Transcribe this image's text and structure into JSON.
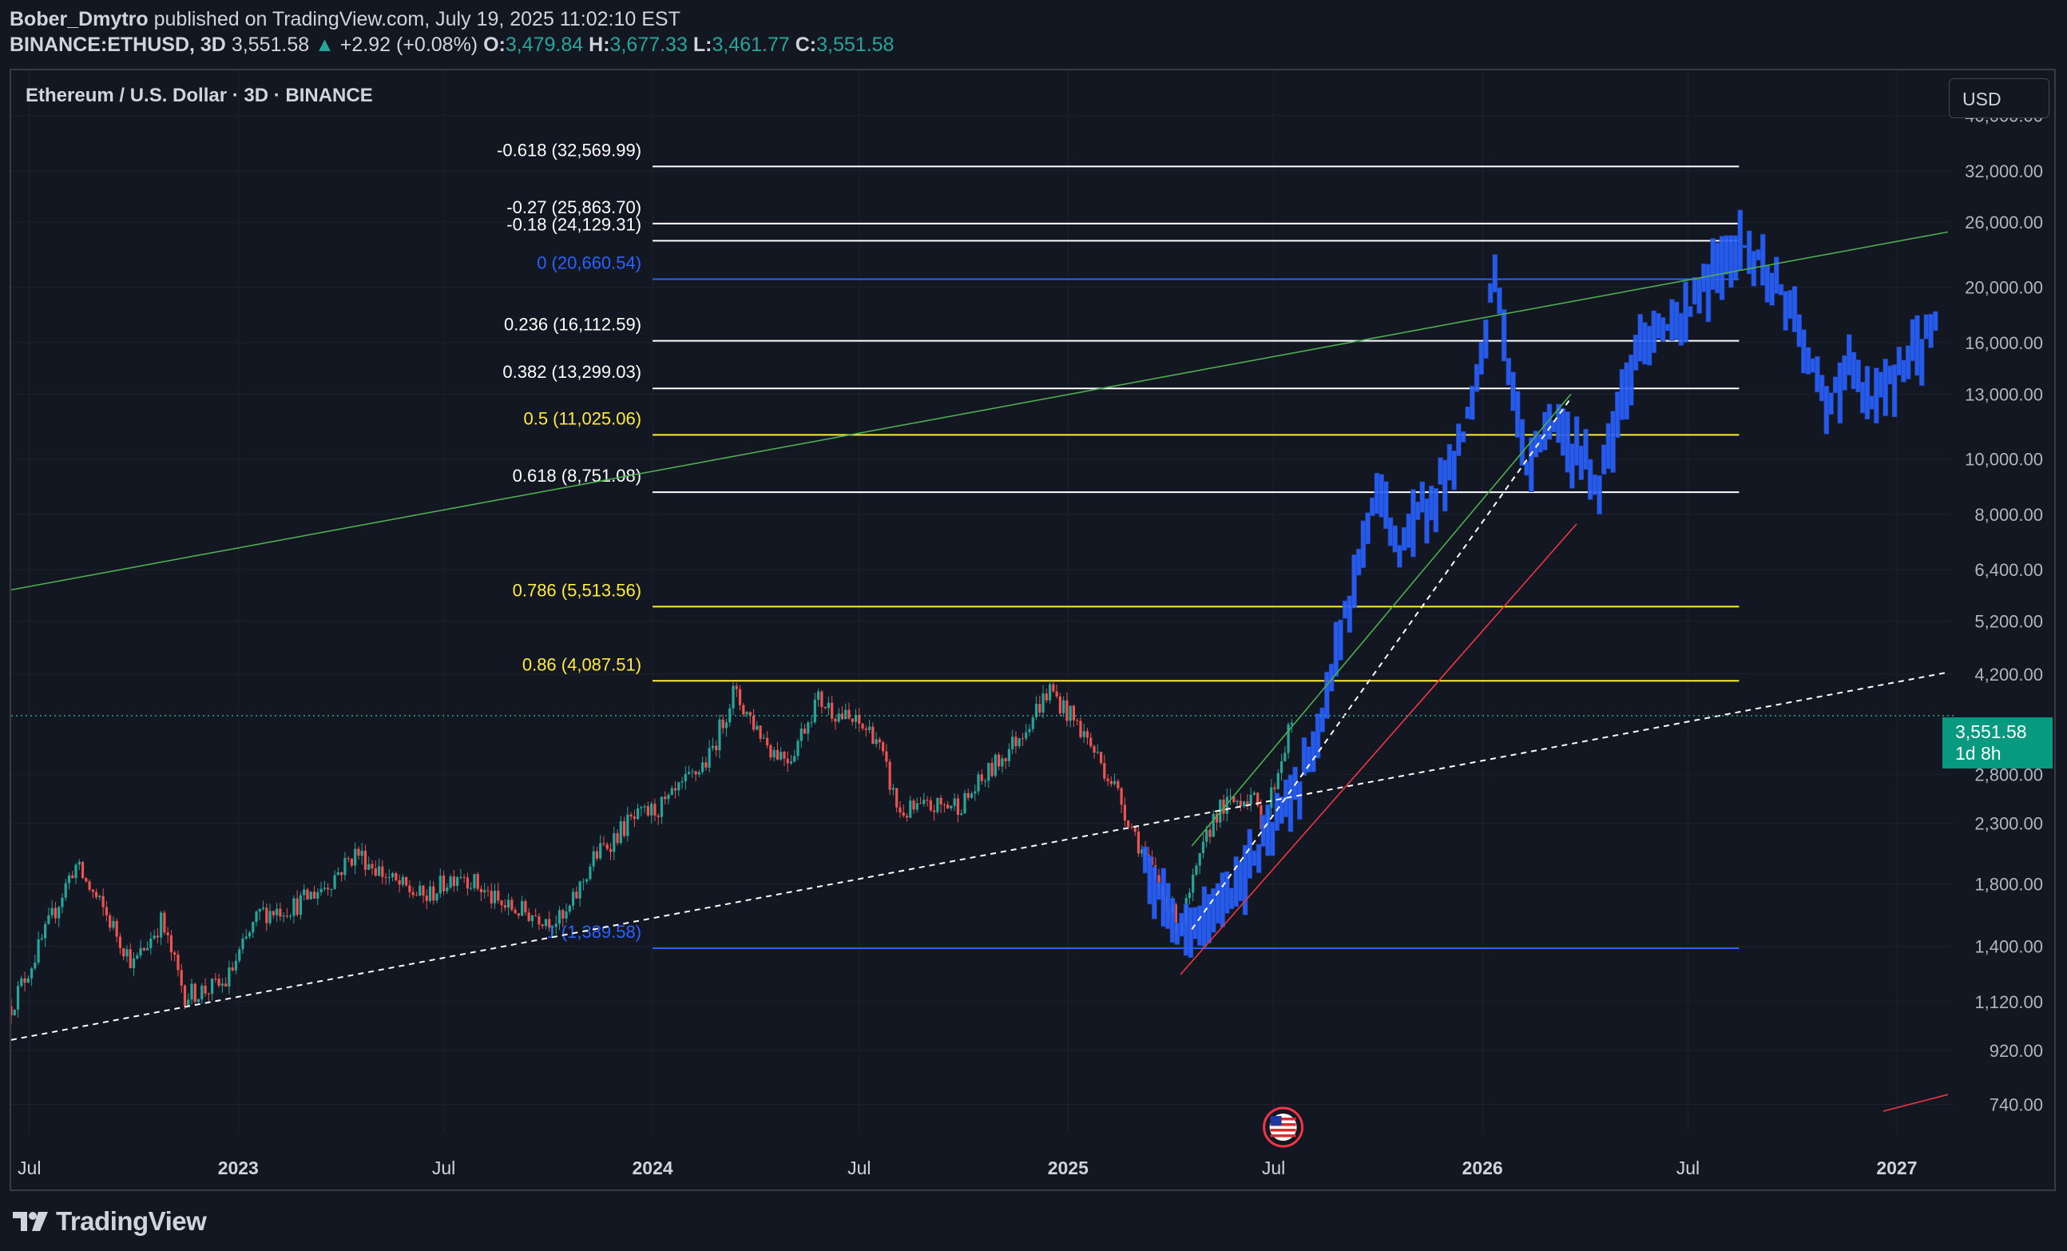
{
  "header": {
    "author": "Bober_Dmytro",
    "published_text": "published on TradingView.com, July 19, 2025 11:02:10 EST",
    "symbol": "BINANCE:ETHUSD, 3D",
    "last_price": "3,551.58",
    "change_arrow": "▲",
    "change": "+2.92 (+0.08%)",
    "o_label": "O:",
    "o_value": "3,479.84",
    "h_label": "H:",
    "h_value": "3,677.33",
    "l_label": "L:",
    "l_value": "3,461.77",
    "c_label": "C:",
    "c_value": "3,551.58"
  },
  "chart_title": "Ethereum / U.S. Dollar · 3D · BINANCE",
  "currency": "USD",
  "price_badge": {
    "price": "3,551.58",
    "countdown": "1d 8h"
  },
  "brand": "TradingView",
  "colors": {
    "background": "#131722",
    "grid": "#1e222d",
    "up": "#26a69a",
    "down": "#ef5350",
    "projection": "#2962ff",
    "fib_white": "#ffffff",
    "fib_yellow": "#ffeb3b",
    "fib_blue": "#2962ff",
    "trend_green": "#4caf50",
    "trend_red": "#f23645"
  },
  "chart_data": {
    "type": "candlestick",
    "title": "Ethereum / U.S. Dollar · 3D · BINANCE",
    "scale": "log",
    "y_range": [
      660,
      48000
    ],
    "x_range": [
      "2022-06-15",
      "2027-02-20"
    ],
    "y_tick_labels": [
      "40,000.00",
      "32,000.00",
      "26,000.00",
      "20,000.00",
      "16,000.00",
      "13,000.00",
      "10,000.00",
      "8,000.00",
      "6,400.00",
      "5,200.00",
      "4,200.00",
      "2,800.00",
      "2,300.00",
      "1,800.00",
      "1,400.00",
      "1,120.00",
      "920.00",
      "740.00"
    ],
    "y_ticks": [
      40000,
      32000,
      26000,
      20000,
      16000,
      13000,
      10000,
      8000,
      6400,
      5200,
      4200,
      2800,
      2300,
      1800,
      1400,
      1120,
      920,
      740
    ],
    "x_ticks": [
      {
        "label": "Jul",
        "date": "2022-07-01",
        "major": false
      },
      {
        "label": "2023",
        "date": "2023-01-01",
        "major": true
      },
      {
        "label": "Jul",
        "date": "2023-07-01",
        "major": false
      },
      {
        "label": "2024",
        "date": "2024-01-01",
        "major": true
      },
      {
        "label": "Jul",
        "date": "2024-07-01",
        "major": false
      },
      {
        "label": "2025",
        "date": "2025-01-01",
        "major": true
      },
      {
        "label": "Jul",
        "date": "2025-07-01",
        "major": false
      },
      {
        "label": "2026",
        "date": "2026-01-01",
        "major": true
      },
      {
        "label": "Jul",
        "date": "2026-07-01",
        "major": false
      },
      {
        "label": "2027",
        "date": "2027-01-01",
        "major": true
      }
    ],
    "current_price": 3551.58,
    "fib_levels": [
      {
        "label": "-0.618 (32,569.99)",
        "value": 32569.99,
        "color": "white"
      },
      {
        "label": "-0.27 (25,863.70)",
        "value": 25863.7,
        "color": "white"
      },
      {
        "label": "-0.18 (24,129.31)",
        "value": 24129.31,
        "color": "white"
      },
      {
        "label": "0 (20,660.54)",
        "value": 20660.54,
        "color": "blue"
      },
      {
        "label": "0.236 (16,112.59)",
        "value": 16112.59,
        "color": "white"
      },
      {
        "label": "0.382 (13,299.03)",
        "value": 13299.03,
        "color": "white"
      },
      {
        "label": "0.5 (11,025.06)",
        "value": 11025.06,
        "color": "yellow"
      },
      {
        "label": "0.618 (8,751.08)",
        "value": 8751.08,
        "color": "white"
      },
      {
        "label": "0.786 (5,513.56)",
        "value": 5513.56,
        "color": "yellow"
      },
      {
        "label": "0.86 (4,087.51)",
        "value": 4087.51,
        "color": "yellow"
      },
      {
        "label": "1 (1,389.58)",
        "value": 1389.58,
        "color": "blue"
      }
    ],
    "fib_range": {
      "start": "2024-01-01",
      "end": "2026-08-15"
    },
    "trendlines": [
      {
        "name": "long-term-support",
        "style": "dashed",
        "color": "white",
        "p1": [
          "2022-06-15",
          960
        ],
        "p2": [
          "2027-02-15",
          4230
        ]
      },
      {
        "name": "big-resistance",
        "style": "solid",
        "color": "green",
        "p1": [
          "2022-06-15",
          5900
        ],
        "p2": [
          "2027-02-15",
          25000
        ]
      },
      {
        "name": "rally-channel-top",
        "style": "solid",
        "color": "green",
        "p1": [
          "2025-04-20",
          2100
        ],
        "p2": [
          "2026-03-20",
          13000
        ]
      },
      {
        "name": "rally-channel-mid",
        "style": "dashed",
        "color": "white",
        "p1": [
          "2025-04-20",
          1500
        ],
        "p2": [
          "2026-03-20",
          12800
        ]
      },
      {
        "name": "rally-channel-bottom",
        "style": "solid",
        "color": "red",
        "p1": [
          "2025-04-10",
          1250
        ],
        "p2": [
          "2026-03-25",
          7700
        ]
      },
      {
        "name": "edge-fragment",
        "style": "solid",
        "color": "red",
        "p1": [
          "2026-12-20",
          720
        ],
        "p2": [
          "2027-02-15",
          770
        ]
      }
    ],
    "history_path": [
      [
        "2022-06-15",
        1100
      ],
      [
        "2022-07-10",
        1400
      ],
      [
        "2022-08-10",
        1950
      ],
      [
        "2022-09-10",
        1550
      ],
      [
        "2022-10-01",
        1300
      ],
      [
        "2022-10-25",
        1550
      ],
      [
        "2022-11-15",
        1150
      ],
      [
        "2022-12-20",
        1200
      ],
      [
        "2023-01-20",
        1600
      ],
      [
        "2023-02-20",
        1650
      ],
      [
        "2023-03-20",
        1800
      ],
      [
        "2023-04-15",
        2050
      ],
      [
        "2023-05-20",
        1800
      ],
      [
        "2023-06-15",
        1700
      ],
      [
        "2023-07-15",
        1900
      ],
      [
        "2023-08-20",
        1650
      ],
      [
        "2023-09-15",
        1600
      ],
      [
        "2023-10-15",
        1550
      ],
      [
        "2023-11-10",
        2000
      ],
      [
        "2023-12-10",
        2300
      ],
      [
        "2024-01-15",
        2500
      ],
      [
        "2024-02-20",
        3000
      ],
      [
        "2024-03-12",
        3900
      ],
      [
        "2024-04-15",
        3100
      ],
      [
        "2024-05-01",
        3000
      ],
      [
        "2024-05-25",
        3800
      ],
      [
        "2024-06-20",
        3500
      ],
      [
        "2024-07-15",
        3300
      ],
      [
        "2024-08-05",
        2400
      ],
      [
        "2024-09-01",
        2450
      ],
      [
        "2024-10-01",
        2500
      ],
      [
        "2024-11-15",
        3200
      ],
      [
        "2024-12-16",
        3950
      ],
      [
        "2025-01-15",
        3300
      ],
      [
        "2025-02-10",
        2700
      ],
      [
        "2025-03-10",
        2000
      ],
      [
        "2025-04-09",
        1500
      ],
      [
        "2025-05-10",
        2400
      ],
      [
        "2025-06-10",
        2600
      ],
      [
        "2025-06-22",
        2300
      ],
      [
        "2025-07-18",
        3551.58
      ]
    ],
    "projection_path": [
      [
        "2025-03-10",
        1900
      ],
      [
        "2025-04-01",
        1600
      ],
      [
        "2025-04-15",
        1450
      ],
      [
        "2025-05-15",
        1650
      ],
      [
        "2025-06-15",
        2000
      ],
      [
        "2025-07-15",
        2500
      ],
      [
        "2025-08-05",
        3000
      ],
      [
        "2025-08-20",
        4300
      ],
      [
        "2025-09-10",
        6000
      ],
      [
        "2025-10-01",
        9000
      ],
      [
        "2025-10-20",
        7000
      ],
      [
        "2025-11-15",
        8500
      ],
      [
        "2025-12-10",
        10000
      ],
      [
        "2026-01-01",
        15000
      ],
      [
        "2026-01-12",
        22000
      ],
      [
        "2026-01-25",
        14000
      ],
      [
        "2026-02-10",
        9500
      ],
      [
        "2026-03-01",
        12000
      ],
      [
        "2026-03-20",
        10500
      ],
      [
        "2026-04-15",
        9000
      ],
      [
        "2026-05-01",
        12500
      ],
      [
        "2026-05-25",
        16500
      ],
      [
        "2026-06-20",
        17000
      ],
      [
        "2026-07-10",
        19000
      ],
      [
        "2026-07-25",
        21500
      ],
      [
        "2026-08-15",
        24000
      ],
      [
        "2026-09-05",
        22000
      ],
      [
        "2026-09-20",
        20000
      ],
      [
        "2026-10-15",
        15000
      ],
      [
        "2026-11-01",
        12500
      ],
      [
        "2026-11-20",
        14500
      ],
      [
        "2026-12-10",
        12500
      ],
      [
        "2027-01-15",
        15500
      ],
      [
        "2027-02-05",
        17000
      ]
    ],
    "events": [
      {
        "date": "2025-07-01",
        "flag": "US"
      }
    ]
  }
}
